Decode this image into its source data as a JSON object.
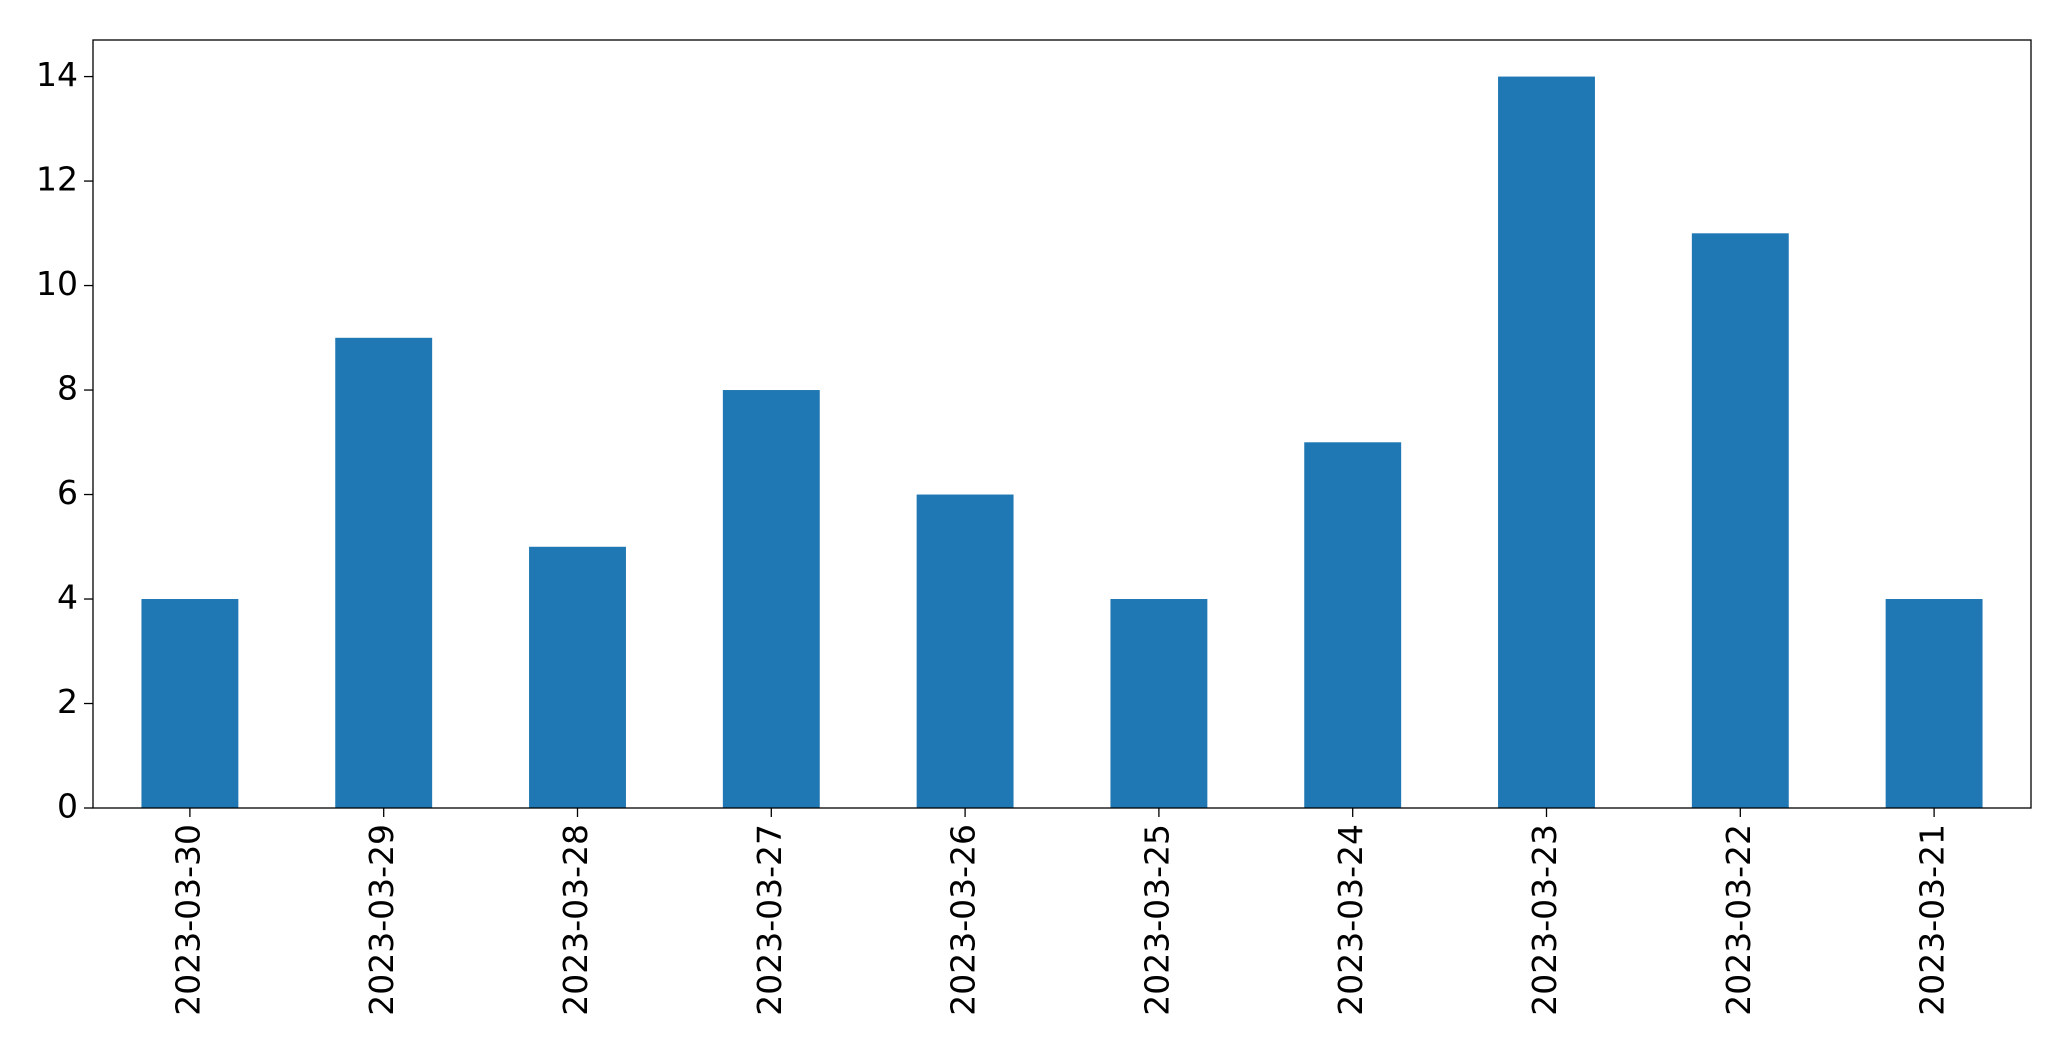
{
  "chart_data": {
    "type": "bar",
    "categories": [
      "2023-03-30",
      "2023-03-29",
      "2023-03-28",
      "2023-03-27",
      "2023-03-26",
      "2023-03-25",
      "2023-03-24",
      "2023-03-23",
      "2023-03-22",
      "2023-03-21"
    ],
    "values": [
      4,
      9,
      5,
      8,
      6,
      4,
      7,
      14,
      11,
      4
    ],
    "color": "#1f77b4",
    "ylim": [
      0,
      14.7
    ],
    "yticks": [
      0,
      2,
      4,
      6,
      8,
      10,
      12,
      14
    ],
    "grid": false
  }
}
